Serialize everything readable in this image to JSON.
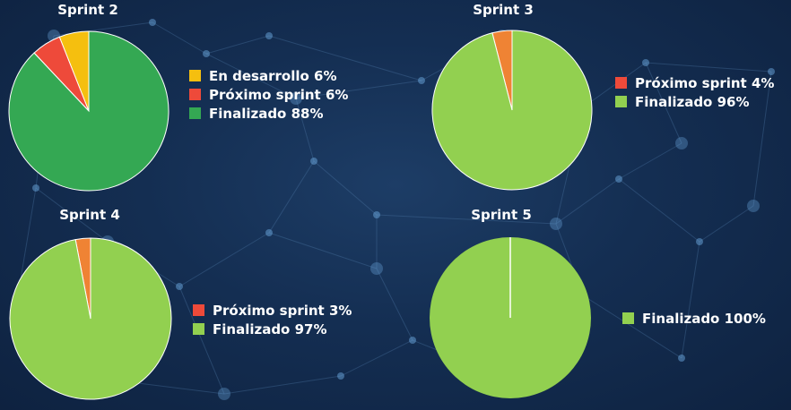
{
  "chart_data": [
    {
      "type": "pie",
      "title": "Sprint 2",
      "slices": [
        {
          "label": "En desarrollo 6%",
          "value": 6,
          "color": "#f5bf0f"
        },
        {
          "label": "Próximo sprint 6%",
          "value": 6,
          "color": "#ee4a3a"
        },
        {
          "label": "Finalizado 88%",
          "value": 88,
          "color": "#34a853"
        }
      ],
      "legend": "right"
    },
    {
      "type": "pie",
      "title": "Sprint 3",
      "slices": [
        {
          "label": "Próximo sprint 4%",
          "value": 4,
          "color": "#ee4a3a",
          "pie_color": "#ef8334"
        },
        {
          "label": "Finalizado 96%",
          "value": 96,
          "color": "#92d050"
        }
      ],
      "legend": "right"
    },
    {
      "type": "pie",
      "title": "Sprint 4",
      "slices": [
        {
          "label": "Próximo sprint 3%",
          "value": 3,
          "color": "#ee4a3a",
          "pie_color": "#ef8334"
        },
        {
          "label": "Finalizado 97%",
          "value": 97,
          "color": "#92d050"
        }
      ],
      "legend": "right"
    },
    {
      "type": "pie",
      "title": "Sprint 5",
      "slices": [
        {
          "label": "Finalizado 100%",
          "value": 100,
          "color": "#92d050"
        }
      ],
      "legend": "right"
    }
  ]
}
